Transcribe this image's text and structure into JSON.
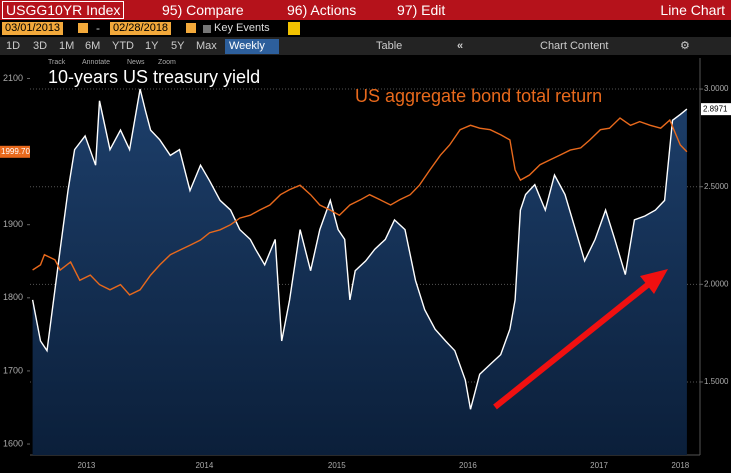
{
  "ui": {
    "ticker": "USGG10YR Index",
    "menu": [
      "95) Compare",
      "96) Actions",
      "97) Edit"
    ],
    "view": "Line Chart",
    "start_date": "03/01/2013",
    "date_sep": "-",
    "end_date": "02/28/2018",
    "key_events": "Key Events",
    "periods": [
      "1D",
      "3D",
      "1M",
      "6M",
      "YTD",
      "1Y",
      "5Y",
      "Max"
    ],
    "frequency": "Weekly",
    "table": "Table",
    "chart_content": "Chart Content",
    "tools": [
      "Track",
      "Annotate",
      "News",
      "Zoom"
    ]
  },
  "chart_data": {
    "type": "line",
    "grid": "y2",
    "xlim": [
      2013.16,
      2018.27
    ],
    "xticks": [
      {
        "value": 2013.59,
        "label": "2013"
      },
      {
        "value": 2014.49,
        "label": "2014"
      },
      {
        "value": 2015.5,
        "label": "2015"
      },
      {
        "value": 2016.5,
        "label": "2016"
      },
      {
        "value": 2017.5,
        "label": "2017"
      },
      {
        "value": 2018.12,
        "label": "2018"
      }
    ],
    "ylim": [
      1585,
      2128
    ],
    "yticks": [
      1600,
      1700,
      1800,
      1900,
      2100
    ],
    "y2lim": [
      1.126,
      3.159
    ],
    "y2ticks": [
      {
        "value": 1.5,
        "label": "1.5000"
      },
      {
        "value": 2,
        "label": "2.0000"
      },
      {
        "value": 2.5,
        "label": "2.5000"
      },
      {
        "value": 3,
        "label": "3.0000"
      }
    ],
    "series": [
      {
        "name": "10-years US treasury yield",
        "color": "#ffffff",
        "axis": "y2",
        "area": true,
        "last_label": "2.8971",
        "x": [
          2013.18,
          2013.24,
          2013.29,
          2013.39,
          2013.45,
          2013.5,
          2013.58,
          2013.66,
          2013.69,
          2013.77,
          2013.85,
          2013.92,
          2014.0,
          2014.04,
          2014.08,
          2014.15,
          2014.23,
          2014.3,
          2014.38,
          2014.46,
          2014.53,
          2014.61,
          2014.69,
          2014.76,
          2014.84,
          2014.88,
          2014.95,
          2015.03,
          2015.08,
          2015.14,
          2015.22,
          2015.3,
          2015.37,
          2015.45,
          2015.51,
          2015.56,
          2015.6,
          2015.64,
          2015.72,
          2015.79,
          2015.87,
          2015.94,
          2016.02,
          2016.1,
          2016.17,
          2016.25,
          2016.33,
          2016.4,
          2016.48,
          2016.52,
          2016.59,
          2016.67,
          2016.75,
          2016.82,
          2016.86,
          2016.9,
          2016.94,
          2017.01,
          2017.09,
          2017.16,
          2017.24,
          2017.32,
          2017.39,
          2017.47,
          2017.55,
          2017.62,
          2017.7,
          2017.77,
          2017.85,
          2017.93,
          2018.0,
          2018.06,
          2018.12,
          2018.17
        ],
        "values": [
          1.92,
          1.71,
          1.66,
          2.18,
          2.48,
          2.69,
          2.76,
          2.61,
          2.94,
          2.69,
          2.79,
          2.69,
          3.0,
          2.89,
          2.79,
          2.74,
          2.66,
          2.69,
          2.48,
          2.61,
          2.53,
          2.43,
          2.38,
          2.28,
          2.23,
          2.18,
          2.1,
          2.23,
          1.71,
          1.92,
          2.28,
          2.07,
          2.28,
          2.43,
          2.28,
          2.23,
          1.92,
          2.07,
          2.12,
          2.18,
          2.23,
          2.33,
          2.28,
          2.02,
          1.87,
          1.77,
          1.71,
          1.66,
          1.51,
          1.36,
          1.54,
          1.59,
          1.64,
          1.77,
          1.92,
          2.38,
          2.46,
          2.51,
          2.38,
          2.56,
          2.46,
          2.28,
          2.12,
          2.23,
          2.38,
          2.23,
          2.05,
          2.33,
          2.35,
          2.38,
          2.43,
          2.84,
          2.87,
          2.8971
        ]
      },
      {
        "name": "US aggregate bond total return",
        "color": "#e8691c",
        "last_label": "1999.70",
        "x": [
          2013.18,
          2013.24,
          2013.27,
          2013.35,
          2013.39,
          2013.47,
          2013.54,
          2013.62,
          2013.69,
          2013.77,
          2013.85,
          2013.92,
          2014.0,
          2014.08,
          2014.15,
          2014.23,
          2014.3,
          2014.38,
          2014.46,
          2014.53,
          2014.61,
          2014.69,
          2014.76,
          2014.84,
          2014.91,
          2014.99,
          2015.07,
          2015.14,
          2015.22,
          2015.3,
          2015.37,
          2015.45,
          2015.52,
          2015.6,
          2015.68,
          2015.75,
          2015.83,
          2015.91,
          2015.98,
          2016.06,
          2016.13,
          2016.21,
          2016.29,
          2016.36,
          2016.44,
          2016.52,
          2016.59,
          2016.67,
          2016.75,
          2016.82,
          2016.86,
          2016.9,
          2016.97,
          2017.05,
          2017.13,
          2017.2,
          2017.28,
          2017.36,
          2017.43,
          2017.51,
          2017.58,
          2017.66,
          2017.74,
          2017.81,
          2017.89,
          2017.97,
          2018.04,
          2018.12,
          2018.17
        ],
        "values": [
          1838,
          1845,
          1859,
          1852,
          1838,
          1849,
          1824,
          1831,
          1818,
          1811,
          1818,
          1804,
          1811,
          1831,
          1845,
          1859,
          1865,
          1872,
          1879,
          1889,
          1893,
          1900,
          1909,
          1913,
          1920,
          1927,
          1941,
          1948,
          1954,
          1941,
          1927,
          1920,
          1913,
          1927,
          1934,
          1941,
          1934,
          1927,
          1934,
          1941,
          1954,
          1975,
          1995,
          2009,
          2030,
          2036,
          2032,
          2030,
          2023,
          2016,
          1975,
          1961,
          1968,
          1982,
          1989,
          1995,
          2002,
          2005,
          2016,
          2030,
          2032,
          2046,
          2036,
          2041,
          2036,
          2032,
          2043,
          2009,
          1999.7
        ]
      }
    ]
  }
}
